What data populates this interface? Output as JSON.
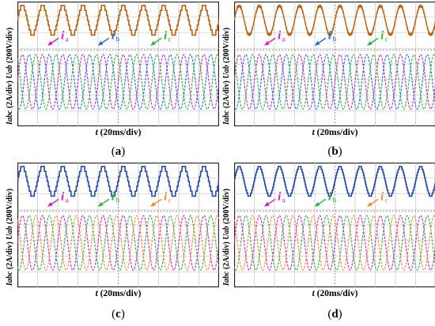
{
  "figures": [
    {
      "caption_letter": "a",
      "voltage_label": "Uab",
      "voltage_unit": "(200V/div)",
      "current_label": "Iabc",
      "current_unit": "(2A/div)",
      "time_label": "t",
      "time_unit": "(20ms/div)",
      "current_names": [
        "a",
        "b",
        "c"
      ],
      "current_colors": [
        "#d020c0",
        "#1f6fcc",
        "#2db040"
      ],
      "voltage_color": "#b8600c",
      "voltage_style": "stepped"
    },
    {
      "caption_letter": "b",
      "voltage_label": "Uab",
      "voltage_unit": "(200V/div)",
      "current_label": "Iabc",
      "current_unit": "(2A/div)",
      "time_label": "t",
      "time_unit": "(20ms/div)",
      "current_names": [
        "a",
        "b",
        "c"
      ],
      "current_colors": [
        "#d020c0",
        "#1f6fcc",
        "#2db040"
      ],
      "voltage_color": "#b8600c",
      "voltage_style": "sine"
    },
    {
      "caption_letter": "c",
      "voltage_label": "Uab",
      "voltage_unit": "(200V/div)",
      "current_label": "Iabc",
      "current_unit": "(2A/div)",
      "time_label": "t",
      "time_unit": "(20ms/div)",
      "current_names": [
        "a",
        "b",
        "c"
      ],
      "current_colors": [
        "#d020c0",
        "#2db040",
        "#f0883a"
      ],
      "voltage_color": "#2448a8",
      "voltage_style": "stepped"
    },
    {
      "caption_letter": "d",
      "voltage_label": "Uab",
      "voltage_unit": "(200V/div)",
      "current_label": "Iabc",
      "current_unit": "(2A/div)",
      "time_label": "t",
      "time_unit": "(20ms/div)",
      "current_names": [
        "a",
        "b",
        "c"
      ],
      "current_colors": [
        "#d020c0",
        "#2db040",
        "#f0883a"
      ],
      "voltage_color": "#2448a8",
      "voltage_style": "stepped-fine"
    }
  ],
  "chart_data": [
    {
      "type": "line",
      "title": "",
      "xlabel": "t (20ms/div)",
      "ylabel": "Uab (200V/div), Iabc (2A/div)",
      "x_divisions": 10,
      "y_divisions": 8,
      "grid": true,
      "series": [
        {
          "name": "Uab",
          "waveform": "stepped multilevel",
          "cycles_on_screen": 10
        },
        {
          "name": "ia",
          "waveform": "sinusoid",
          "cycles_on_screen": 10,
          "phase_deg": 0
        },
        {
          "name": "ib",
          "waveform": "sinusoid",
          "cycles_on_screen": 10,
          "phase_deg": -120
        },
        {
          "name": "ic",
          "waveform": "sinusoid",
          "cycles_on_screen": 10,
          "phase_deg": 120
        }
      ]
    },
    {
      "type": "line",
      "title": "",
      "xlabel": "t (20ms/div)",
      "ylabel": "Uab (200V/div), Iabc (2A/div)",
      "x_divisions": 10,
      "y_divisions": 8,
      "grid": true,
      "series": [
        {
          "name": "Uab",
          "waveform": "near-sinusoidal",
          "cycles_on_screen": 10
        },
        {
          "name": "ia",
          "waveform": "sinusoid",
          "cycles_on_screen": 10,
          "phase_deg": 0
        },
        {
          "name": "ib",
          "waveform": "sinusoid",
          "cycles_on_screen": 10,
          "phase_deg": -120
        },
        {
          "name": "ic",
          "waveform": "sinusoid",
          "cycles_on_screen": 10,
          "phase_deg": 120
        }
      ]
    },
    {
      "type": "line",
      "title": "",
      "xlabel": "t (20ms/div)",
      "ylabel": "Uab (200V/div), Iabc (2A/div)",
      "x_divisions": 10,
      "y_divisions": 8,
      "grid": true,
      "series": [
        {
          "name": "Uab",
          "waveform": "stepped multilevel",
          "cycles_on_screen": 10
        },
        {
          "name": "ia",
          "waveform": "sinusoid",
          "cycles_on_screen": 10,
          "phase_deg": 0
        },
        {
          "name": "ib",
          "waveform": "sinusoid",
          "cycles_on_screen": 10,
          "phase_deg": -120
        },
        {
          "name": "ic",
          "waveform": "sinusoid",
          "cycles_on_screen": 10,
          "phase_deg": 120
        }
      ]
    },
    {
      "type": "line",
      "title": "",
      "xlabel": "t (20ms/div)",
      "ylabel": "Uab (200V/div), Iabc (2A/div)",
      "x_divisions": 10,
      "y_divisions": 8,
      "grid": true,
      "series": [
        {
          "name": "Uab",
          "waveform": "stepped multilevel (fine)",
          "cycles_on_screen": 10
        },
        {
          "name": "ia",
          "waveform": "sinusoid",
          "cycles_on_screen": 10,
          "phase_deg": 0
        },
        {
          "name": "ib",
          "waveform": "sinusoid",
          "cycles_on_screen": 10,
          "phase_deg": -120
        },
        {
          "name": "ic",
          "waveform": "sinusoid",
          "cycles_on_screen": 10,
          "phase_deg": 120
        }
      ]
    }
  ]
}
